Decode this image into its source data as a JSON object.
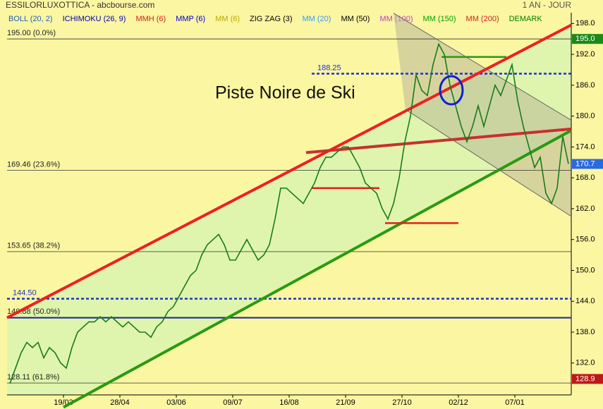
{
  "chart_data": {
    "type": "line",
    "title": "ESSILORLUXOTTICA - abcbourse.com",
    "period": "1 AN - JOUR",
    "annotation": "Piste Noire de Ski",
    "indicators": [
      {
        "name": "BOLL (20, 2)",
        "color": "#1f5fbf"
      },
      {
        "name": "ICHIMOKU (26, 9)",
        "color": "#0000b0"
      },
      {
        "name": "MMH (6)",
        "color": "#d02020"
      },
      {
        "name": "MMP (6)",
        "color": "#0000d0"
      },
      {
        "name": "MM (6)",
        "color": "#b8a800"
      },
      {
        "name": "ZIG ZAG (3)",
        "color": "#000000"
      },
      {
        "name": "MM (20)",
        "color": "#3399ff"
      },
      {
        "name": "MM (50)",
        "color": "#000000"
      },
      {
        "name": "MM (100)",
        "color": "#c040c0"
      },
      {
        "name": "MM (150)",
        "color": "#00a000"
      },
      {
        "name": "MM (200)",
        "color": "#d02020"
      },
      {
        "name": "DEMARK",
        "color": "#008000"
      }
    ],
    "categories": [
      null,
      null,
      null,
      null,
      null,
      null,
      null,
      null,
      null,
      null,
      "19/03",
      null,
      null,
      null,
      null,
      null,
      null,
      null,
      null,
      null,
      "28/04",
      null,
      null,
      null,
      null,
      null,
      null,
      null,
      null,
      null,
      "03/06",
      null,
      null,
      null,
      null,
      null,
      null,
      null,
      null,
      null,
      "09/07",
      null,
      null,
      null,
      null,
      null,
      null,
      null,
      null,
      null,
      "16/08",
      null,
      null,
      null,
      null,
      null,
      null,
      null,
      null,
      null,
      "21/09",
      null,
      null,
      null,
      null,
      null,
      null,
      null,
      null,
      null,
      "27/10",
      null,
      null,
      null,
      null,
      null,
      null,
      null,
      null,
      null,
      "02/12",
      null,
      null,
      null,
      null,
      null,
      null,
      null,
      null,
      null,
      "07/01",
      null,
      null,
      null,
      null,
      null,
      null,
      null,
      null,
      null
    ],
    "series": [
      {
        "name": "ESSILORLUXOTTICA",
        "color": "#1a7a1a",
        "values": [
          128,
          131,
          134,
          136,
          135,
          136,
          133,
          135,
          134,
          132,
          131,
          135,
          138,
          139,
          140,
          140,
          141,
          140,
          141,
          140,
          139,
          140,
          139,
          138,
          138,
          137,
          139,
          140,
          142,
          143,
          145,
          147,
          149,
          150,
          153,
          155,
          156,
          157,
          155,
          152,
          152,
          154,
          156,
          154,
          152,
          153,
          155,
          160,
          166,
          166,
          165,
          164,
          163,
          165,
          167,
          170,
          172,
          172,
          173,
          174,
          174,
          172,
          170,
          167,
          166,
          165,
          162,
          160,
          163,
          168,
          175,
          180,
          188,
          185,
          184,
          190,
          194,
          192,
          186,
          182,
          178,
          175,
          178,
          182,
          178,
          182,
          186,
          184,
          187,
          190,
          183,
          178,
          174,
          170,
          172,
          165,
          163,
          166,
          176,
          170.7
        ]
      }
    ],
    "ylim": [
      125.8,
      200.1
    ],
    "yticks": [
      {
        "value": 132,
        "label": "132.0"
      },
      {
        "value": 138,
        "label": "138.0"
      },
      {
        "value": 144,
        "label": "144.0"
      },
      {
        "value": 150,
        "label": "150.0"
      },
      {
        "value": 156,
        "label": "156.0"
      },
      {
        "value": 162,
        "label": "162.0"
      },
      {
        "value": 168,
        "label": "168.0"
      },
      {
        "value": 174,
        "label": "174.0"
      },
      {
        "value": 180,
        "label": "180.0"
      },
      {
        "value": 186,
        "label": "186.0"
      },
      {
        "value": 192,
        "label": "192.0"
      },
      {
        "value": 198,
        "label": "198.0"
      }
    ],
    "fibonacci": [
      {
        "value": 195,
        "label": "195.00  (0.0%)"
      },
      {
        "value": 169.46,
        "label": "169.46  (23.6%)"
      },
      {
        "value": 153.65,
        "label": "153.65  (38.2%)"
      },
      {
        "value": 140.88,
        "label": "140.88  (50.0%)"
      },
      {
        "value": 128.11,
        "label": "128.11  (61.8%)"
      }
    ],
    "levels": [
      {
        "value": 188.25,
        "label": "188.25",
        "from": 54
      },
      {
        "value": 144.5,
        "label": "144.50",
        "from": 0
      }
    ],
    "support": {
      "value": 140.8,
      "color": "#1a2aa0"
    },
    "trendlines": [
      {
        "color": "#ee2020",
        "points": [
          [
            0,
            140.8
          ],
          [
            100,
            197.7
          ]
        ]
      },
      {
        "color": "#2a9a10",
        "points": [
          [
            10,
            123.4
          ],
          [
            100,
            177.2
          ]
        ]
      },
      {
        "color": "#c83030",
        "points": [
          [
            53,
            172.9
          ],
          [
            100,
            177.5
          ]
        ]
      },
      {
        "color": "#666666",
        "points": [
          [
            68.5,
            200
          ],
          [
            100,
            179.2
          ]
        ]
      },
      {
        "color": "#666666",
        "points": [
          [
            70.6,
            181.3
          ],
          [
            100,
            160.5
          ]
        ]
      },
      {
        "color": "#e02020",
        "points": [
          [
            54,
            166
          ],
          [
            66,
            166
          ]
        ]
      },
      {
        "color": "#e02020",
        "points": [
          [
            67,
            159.2
          ],
          [
            80,
            159.2
          ]
        ]
      },
      {
        "color": "#2a9a10",
        "points": [
          [
            77,
            191.5
          ],
          [
            88.5,
            191.5
          ]
        ]
      }
    ],
    "tags": [
      {
        "value": 195.0,
        "label": "195.0",
        "color": "#1a8a1a"
      },
      {
        "value": 170.7,
        "label": "170.7",
        "color": "#2a6ae0"
      },
      {
        "value": 128.9,
        "label": "128.9",
        "color": "#c01818"
      }
    ]
  }
}
